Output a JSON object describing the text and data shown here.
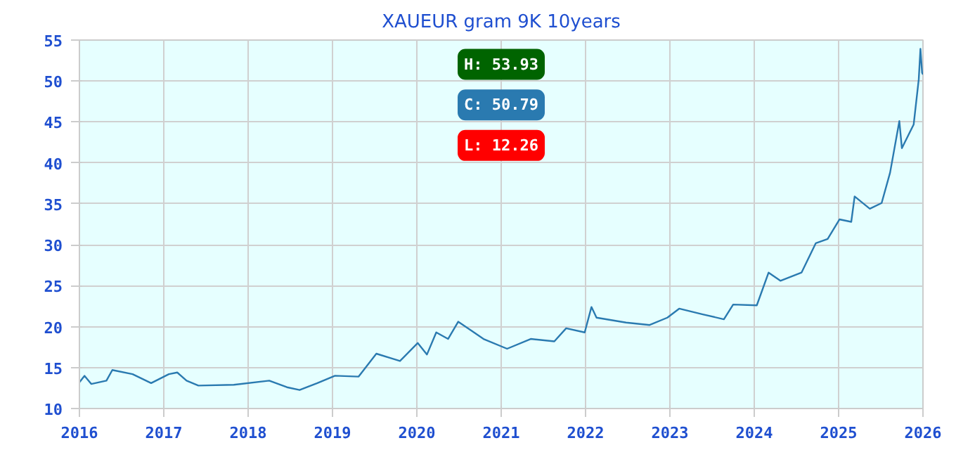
{
  "chart_data": {
    "type": "line",
    "title": "XAUEUR gram 9K 10years",
    "x": [
      2016.0,
      2016.06,
      2016.14,
      2016.32,
      2016.39,
      2016.63,
      2016.85,
      2017.06,
      2017.16,
      2017.27,
      2017.41,
      2017.83,
      2018.25,
      2018.46,
      2018.61,
      2018.82,
      2019.03,
      2019.31,
      2019.52,
      2019.8,
      2020.01,
      2020.12,
      2020.23,
      2020.37,
      2020.49,
      2020.65,
      2020.79,
      2021.07,
      2021.35,
      2021.63,
      2021.77,
      2021.99,
      2022.07,
      2022.13,
      2022.48,
      2022.76,
      2022.97,
      2023.11,
      2023.39,
      2023.64,
      2023.75,
      2024.03,
      2024.17,
      2024.31,
      2024.56,
      2024.73,
      2024.87,
      2025.01,
      2025.15,
      2025.19,
      2025.37,
      2025.51,
      2025.61,
      2025.72,
      2025.75,
      2025.89,
      2025.95,
      2025.97,
      2025.99,
      2026.0
    ],
    "series": [
      {
        "color": "#2a7ab0",
        "values": [
          13.2,
          14.0,
          13.0,
          13.4,
          14.7,
          14.2,
          13.1,
          14.2,
          14.4,
          13.4,
          12.8,
          12.9,
          13.4,
          12.6,
          12.26,
          13.1,
          14.0,
          13.9,
          16.7,
          15.8,
          18.0,
          16.6,
          19.3,
          18.5,
          20.6,
          19.5,
          18.5,
          17.3,
          18.5,
          18.2,
          19.8,
          19.3,
          22.4,
          21.1,
          20.5,
          20.2,
          21.1,
          22.2,
          21.5,
          20.9,
          22.7,
          22.6,
          26.6,
          25.6,
          26.6,
          30.2,
          30.7,
          33.1,
          32.8,
          35.9,
          34.4,
          35.1,
          38.8,
          45.1,
          41.8,
          44.7,
          50.2,
          53.93,
          51.0,
          50.79
        ]
      }
    ],
    "xlim": [
      2016,
      2026
    ],
    "xticks": [
      2016,
      2017,
      2018,
      2019,
      2020,
      2021,
      2022,
      2023,
      2024,
      2025,
      2026
    ],
    "ylim": [
      10,
      55
    ],
    "yticks": [
      10,
      15,
      20,
      25,
      30,
      35,
      40,
      45,
      50,
      55
    ],
    "grid": true,
    "line_style": "solid",
    "marker": "none",
    "annotations": [
      "H: 53.93",
      "C: 50.79",
      "L: 12.26"
    ]
  }
}
